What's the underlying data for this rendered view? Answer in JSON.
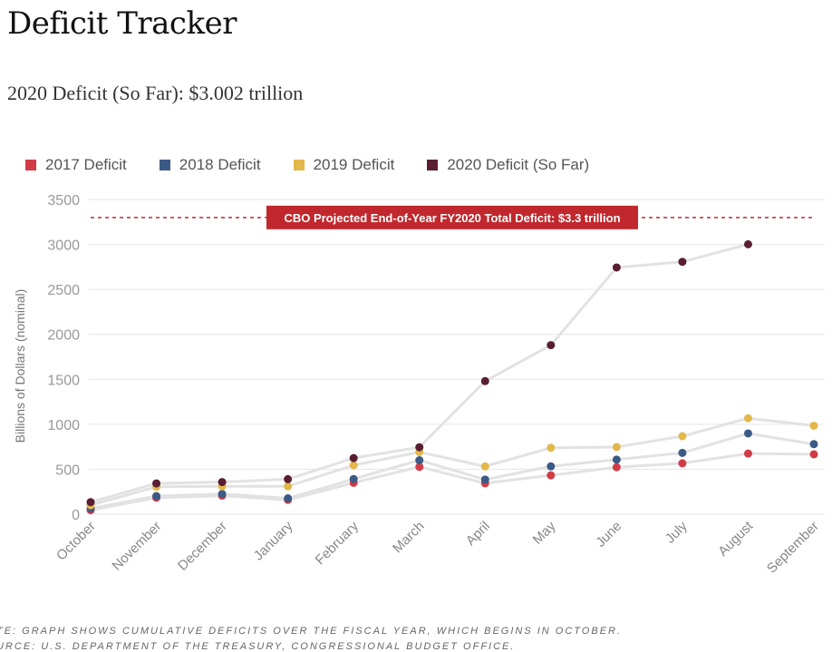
{
  "header": {
    "title": "Deficit Tracker",
    "subtitle": "2020 Deficit (So Far): $3.002 trillion"
  },
  "footnotes": {
    "note": "TE: GRAPH SHOWS CUMULATIVE DEFICITS OVER THE FISCAL YEAR, WHICH BEGINS IN OCTOBER.",
    "source": "URCE: U.S. DEPARTMENT OF THE TREASURY, CONGRESSIONAL BUDGET OFFICE."
  },
  "colors": {
    "line": "#e2e2e2",
    "grid": "#e6e6e6",
    "reference": "#c0282d",
    "axis_text": "#999999"
  },
  "chart_data": {
    "type": "line",
    "ylabel": "Billions of Dollars (nominal)",
    "xlabel": "",
    "ylim": [
      0,
      3500
    ],
    "yticks": [
      0,
      500,
      1000,
      1500,
      2000,
      2500,
      3000,
      3500
    ],
    "grid": true,
    "legend_position": "top",
    "categories": [
      "October",
      "November",
      "December",
      "January",
      "February",
      "March",
      "April",
      "May",
      "June",
      "July",
      "August",
      "September"
    ],
    "series": [
      {
        "name": "2017 Deficit",
        "color": "#d13b45",
        "values": [
          45,
          183,
          206,
          159,
          349,
          526,
          344,
          432,
          522,
          566,
          674,
          666
        ]
      },
      {
        "name": "2018 Deficit",
        "color": "#3c5a86",
        "values": [
          63,
          201,
          225,
          176,
          391,
          600,
          385,
          532,
          607,
          682,
          898,
          779
        ]
      },
      {
        "name": "2019 Deficit",
        "color": "#e3b84a",
        "values": [
          100,
          305,
          310,
          310,
          544,
          691,
          531,
          738,
          747,
          867,
          1067,
          984
        ]
      },
      {
        "name": "2020 Deficit (So Far)",
        "color": "#5a1e32",
        "values": [
          134,
          342,
          357,
          389,
          624,
          744,
          1480,
          1880,
          2744,
          2807,
          3002,
          null
        ]
      }
    ],
    "reference_line": {
      "value": 3300,
      "label": "CBO Projected End-of-Year FY2020 Total Deficit: $3.3 trillion"
    }
  }
}
